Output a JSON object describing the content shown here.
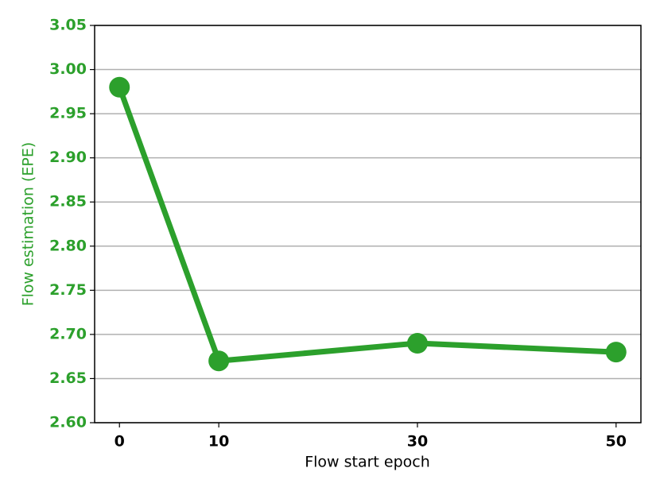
{
  "chart_data": {
    "type": "line",
    "x_label": "Flow start epoch",
    "y_label": "Flow estimation (EPE)",
    "x": [
      0,
      10,
      30,
      50
    ],
    "series": [
      {
        "color": "#2ca02c",
        "values": [
          2.98,
          2.67,
          2.69,
          2.68
        ]
      }
    ],
    "xlim": [
      -2.5,
      52.5
    ],
    "xticks": [
      0,
      10,
      30,
      50
    ],
    "ylim": [
      2.6,
      3.05
    ],
    "yticks": [
      {
        "value": 2.6,
        "label": "2.60"
      },
      2.65,
      {
        "value": 2.7,
        "label": "2.70"
      },
      2.75,
      {
        "value": 2.8,
        "label": "2.80"
      },
      2.85,
      {
        "value": 2.9,
        "label": "2.90"
      },
      2.95,
      {
        "value": 3,
        "label": "3.00"
      },
      3.05
    ],
    "grid": "y",
    "y_axis_color": "#2ca02c"
  }
}
